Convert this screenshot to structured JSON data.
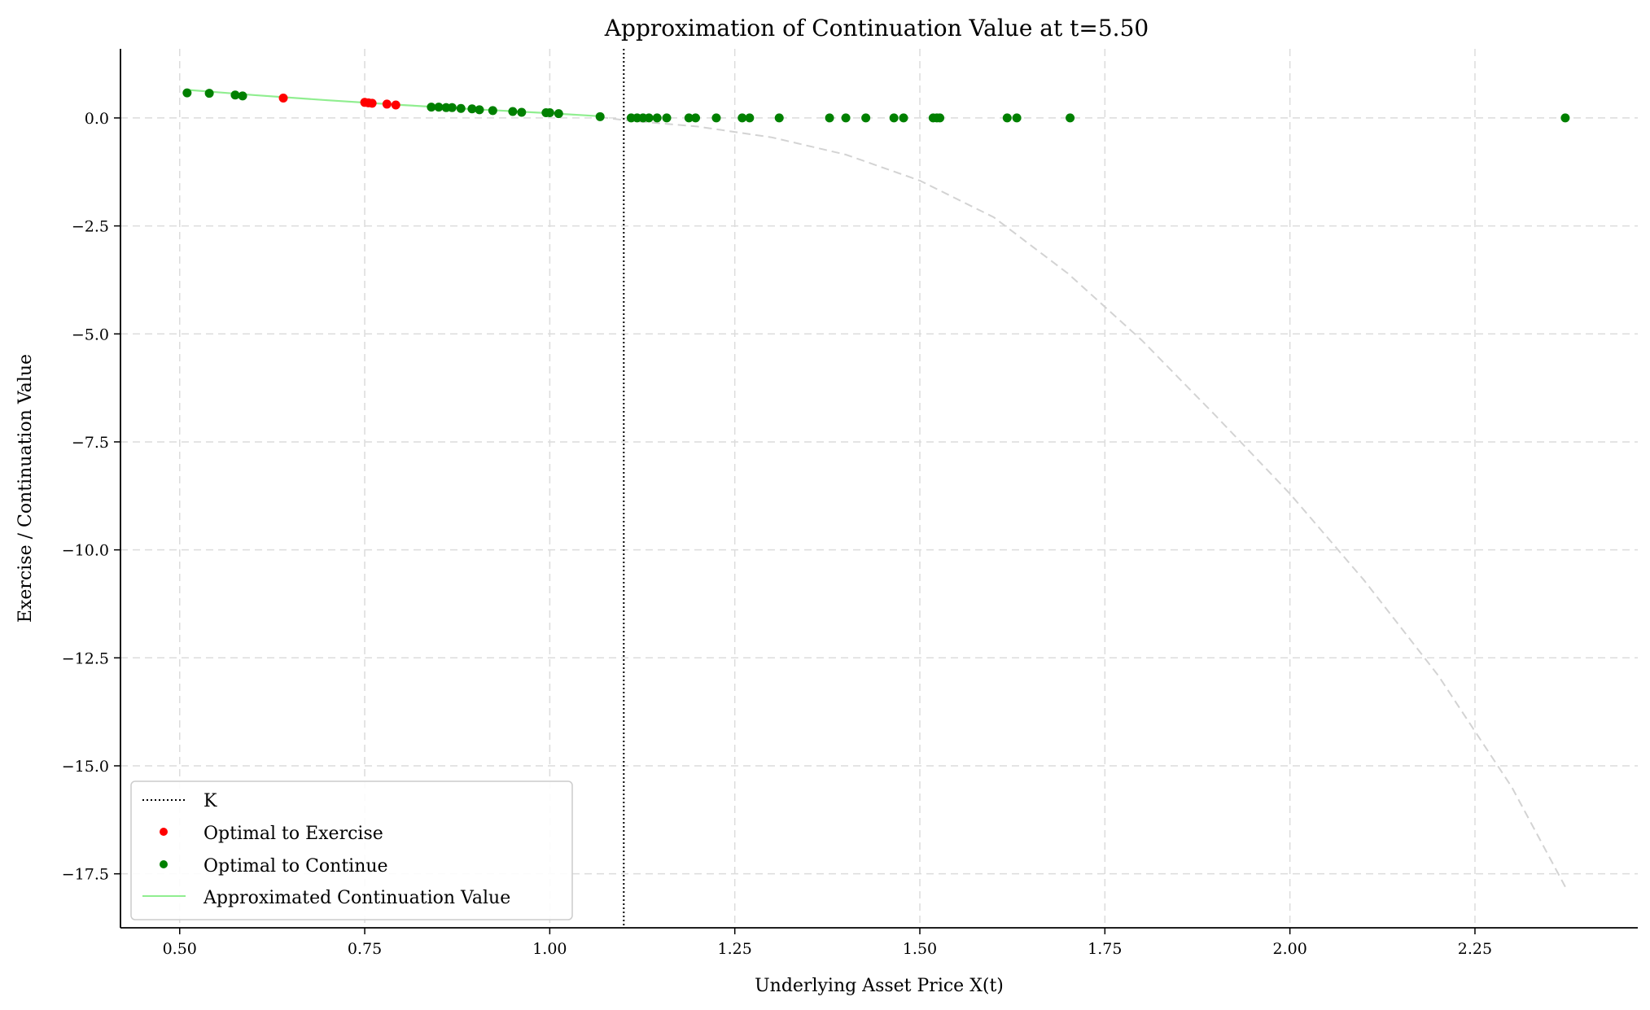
{
  "chart_data": {
    "type": "scatter",
    "title": "Approximation of Continuation Value at t=5.50",
    "xlabel": "Underlying Asset Price X(t)",
    "ylabel": "Exercise / Continuation Value",
    "xlim": [
      0.42,
      2.47
    ],
    "ylim": [
      -18.75,
      1.6
    ],
    "xticks": [
      0.5,
      0.75,
      1.0,
      1.25,
      1.5,
      1.75,
      2.0,
      2.25
    ],
    "xtick_labels": [
      "0.50",
      "0.75",
      "1.00",
      "1.25",
      "1.50",
      "1.75",
      "2.00",
      "2.25"
    ],
    "yticks": [
      0.0,
      -2.5,
      -5.0,
      -7.5,
      -10.0,
      -12.5,
      -15.0,
      -17.5
    ],
    "ytick_labels": [
      "0.0",
      "−2.5",
      "−5.0",
      "−7.5",
      "−10.0",
      "−12.5",
      "−15.0",
      "−17.5"
    ],
    "grid": true,
    "legend_position": "lower-left",
    "K": 1.1,
    "series": [
      {
        "name": "K",
        "kind": "vline",
        "color": "#000000",
        "x": 1.1
      },
      {
        "name": "Optimal to Exercise",
        "kind": "scatter",
        "color": "#ff0000",
        "x": [
          0.64,
          0.75,
          0.755,
          0.76,
          0.78,
          0.792
        ],
        "y": [
          0.46,
          0.36,
          0.35,
          0.34,
          0.32,
          0.3
        ]
      },
      {
        "name": "Optimal to Continue",
        "kind": "scatter",
        "color": "#008000",
        "x": [
          0.51,
          0.54,
          0.575,
          0.585,
          0.84,
          0.85,
          0.86,
          0.868,
          0.88,
          0.895,
          0.905,
          0.923,
          0.95,
          0.962,
          0.995,
          1.0,
          1.012,
          1.068,
          1.11,
          1.118,
          1.126,
          1.134,
          1.145,
          1.158,
          1.188,
          1.197,
          1.225,
          1.26,
          1.27,
          1.31,
          1.378,
          1.4,
          1.427,
          1.465,
          1.478,
          1.518,
          1.523,
          1.527,
          1.618,
          1.631,
          1.703,
          2.372
        ],
        "y": [
          0.58,
          0.57,
          0.53,
          0.51,
          0.25,
          0.25,
          0.24,
          0.24,
          0.22,
          0.21,
          0.19,
          0.17,
          0.15,
          0.13,
          0.12,
          0.12,
          0.1,
          0.03,
          0,
          0,
          0,
          0,
          0,
          0,
          0,
          0,
          0,
          0,
          0,
          0,
          0,
          0,
          0,
          0,
          0,
          0,
          0,
          0,
          0,
          0,
          0,
          0
        ]
      },
      {
        "name": "Approximated Continuation Value",
        "kind": "line",
        "color": "#90ee90",
        "x": [
          0.51,
          0.6,
          0.7,
          0.8,
          0.9,
          1.0,
          1.068
        ],
        "y": [
          0.65,
          0.53,
          0.41,
          0.3,
          0.2,
          0.11,
          0.04
        ]
      },
      {
        "name": "",
        "kind": "dashed-line",
        "color": "#d3d3d3",
        "x": [
          1.068,
          1.1,
          1.2,
          1.3,
          1.4,
          1.5,
          1.6,
          1.7,
          1.8,
          1.9,
          2.0,
          2.1,
          2.2,
          2.3,
          2.372
        ],
        "y": [
          0.02,
          -0.05,
          -0.2,
          -0.45,
          -0.85,
          -1.45,
          -2.3,
          -3.6,
          -5.15,
          -6.9,
          -8.7,
          -10.7,
          -12.9,
          -15.5,
          -17.8
        ]
      }
    ]
  }
}
